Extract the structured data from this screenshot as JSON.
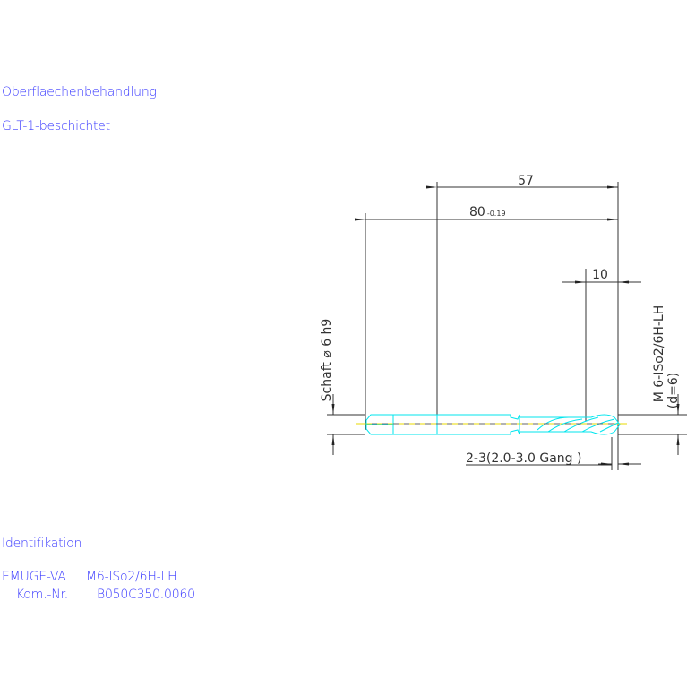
{
  "surface": {
    "title": "Oberflaechenbehandlung",
    "value": "GLT-1-beschichtet"
  },
  "identification": {
    "title": "Identifikation",
    "line1_label": "EMUGE-VA",
    "line1_value": "M6-ISo2/6H-LH",
    "line2_label": "Kom.-Nr.",
    "line2_value": "B050C350.0060"
  },
  "dimensions": {
    "overall_length": "80",
    "overall_tolerance": "-0.19",
    "length_57": "57",
    "length_10": "10",
    "shank": "Schaft ⌀ 6 h9",
    "thread": "M 6-ISo2/6H-LH",
    "thread_d": "(d=6)",
    "chamfer": "2-3(2.0-3.0 Gang  )"
  },
  "colors": {
    "text": "#3a3aff",
    "tool_outline": "#00e5ee",
    "centerline": "#e8d800",
    "dimension": "#333333"
  }
}
